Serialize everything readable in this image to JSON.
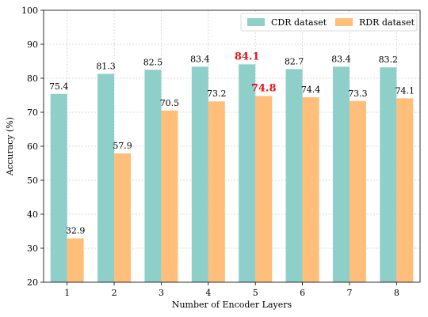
{
  "chart_data": {
    "type": "bar",
    "title": "",
    "xlabel": "Number of Encoder Layers",
    "ylabel": "Accuracy (%)",
    "categories": [
      "1",
      "2",
      "3",
      "4",
      "5",
      "6",
      "7",
      "8"
    ],
    "ylim": [
      20,
      100
    ],
    "yticks": [
      20,
      30,
      40,
      50,
      60,
      70,
      80,
      90,
      100
    ],
    "grid": true,
    "legend_position": "top-right",
    "series": [
      {
        "name": "CDR dataset",
        "color": "#8ecfc9",
        "values": [
          75.4,
          81.3,
          82.5,
          83.4,
          84.1,
          82.7,
          83.4,
          83.2
        ],
        "labels": [
          "75.4",
          "81.3",
          "82.5",
          "83.4",
          "84.1",
          "82.7",
          "83.4",
          "83.2"
        ],
        "highlight_index": 4
      },
      {
        "name": "RDR dataset",
        "color": "#ffbe7a",
        "values": [
          32.9,
          57.9,
          70.5,
          73.2,
          74.8,
          74.4,
          73.3,
          74.1
        ],
        "labels": [
          "32.9",
          "57.9",
          "70.5",
          "73.2",
          "74.8",
          "74.4",
          "73.3",
          "74.1"
        ],
        "highlight_index": 4
      }
    ],
    "highlight_color": "#e8141c"
  }
}
